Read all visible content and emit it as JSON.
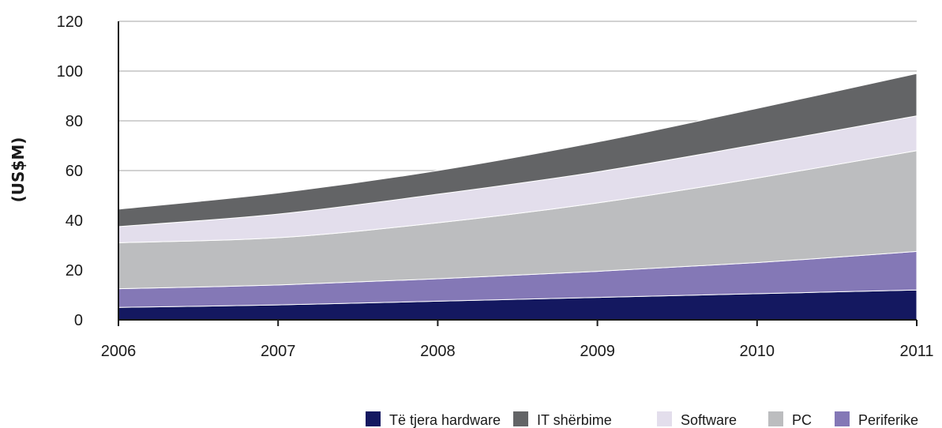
{
  "chart_data": {
    "type": "area",
    "stacked": true,
    "title": "",
    "xlabel": "",
    "ylabel": "(US$M)",
    "x": [
      "2006",
      "2007",
      "2008",
      "2009",
      "2010",
      "2011"
    ],
    "ylim": [
      0,
      120
    ],
    "yticks": [
      "0",
      "20",
      "40",
      "60",
      "80",
      "100",
      "120"
    ],
    "grid": true,
    "legend_position": "bottom-right",
    "series": [
      {
        "name": "Të tjera hardware",
        "color": "#141860",
        "values": [
          5,
          6,
          7.5,
          9,
          10.5,
          12
        ]
      },
      {
        "name": "Periferike",
        "color": "#8478b6",
        "values": [
          7.5,
          8,
          9,
          10.5,
          12.5,
          15.5
        ]
      },
      {
        "name": "PC",
        "color": "#bcbdbf",
        "values": [
          18.5,
          19,
          22.5,
          27.5,
          34,
          40.5
        ]
      },
      {
        "name": "Software",
        "color": "#e3deec",
        "values": [
          6.5,
          9.5,
          11.5,
          12.5,
          13.5,
          14
        ]
      },
      {
        "name": "IT shërbime",
        "color": "#636466",
        "values": [
          7,
          8.5,
          9.5,
          12,
          14.5,
          17
        ]
      }
    ],
    "legend_order": [
      "Të tjera hardware",
      "IT shërbime",
      "Software",
      "PC",
      "Periferike"
    ]
  }
}
